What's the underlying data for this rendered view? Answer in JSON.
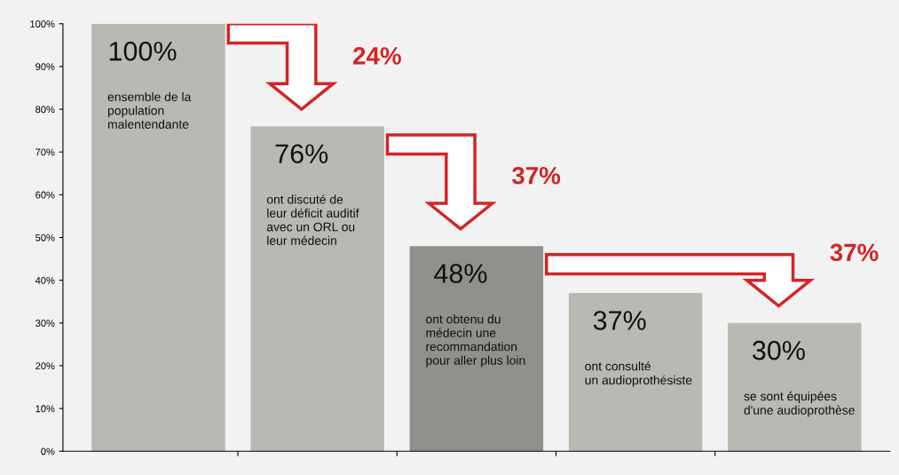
{
  "chart_data": {
    "type": "bar",
    "categories": [
      null,
      null,
      null,
      null,
      null
    ],
    "values": [
      100,
      76,
      48,
      37,
      30
    ],
    "colors": [
      "#b7b9b2",
      "#b7b9b2",
      "#8f918c",
      "#b7b9b2",
      "#b7b9b2"
    ],
    "value_labels": [
      "100%",
      "76%",
      "48%",
      "37%",
      "30%"
    ],
    "annotations": [
      "ensemble de la\npopulation\nmalentendante",
      "ont discuté de\nleur déficit auditif\navec un ORL ou\nleur médecin",
      "ont obtenu du\nmédecin une\nrecommandation\npour aller plus loin",
      "ont consulté\nun audioprothésiste",
      "se sont équipées\nd'une audioprothèse",
      "24%",
      "37%",
      "37%"
    ],
    "ylim": [
      0,
      100
    ],
    "yticks": [
      {
        "value": 0,
        "label": "0%"
      },
      {
        "value": 10,
        "label": "10%"
      },
      {
        "value": 20,
        "label": "20%"
      },
      {
        "value": 30,
        "label": "30%"
      },
      {
        "value": 40,
        "label": "40%"
      },
      {
        "value": 50,
        "label": "50%"
      },
      {
        "value": 60,
        "label": "60%"
      },
      {
        "value": 70,
        "label": "70%"
      },
      {
        "value": 80,
        "label": "80%"
      },
      {
        "value": 90,
        "label": "90%"
      },
      {
        "value": 100,
        "label": "100%"
      }
    ],
    "grid": false
  }
}
